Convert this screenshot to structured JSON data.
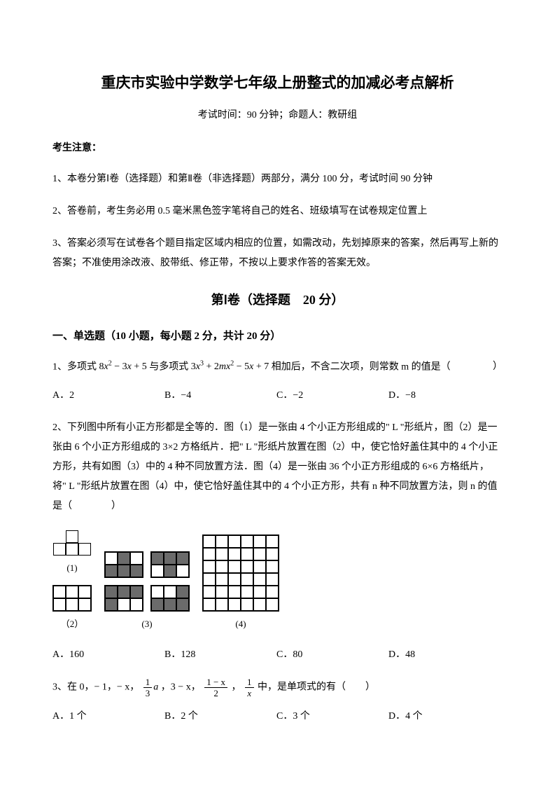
{
  "title": "重庆市实验中学数学七年级上册整式的加减必考点解析",
  "subtitle": "考试时间：90 分钟；命题人：教研组",
  "noticeHeader": "考生注意：",
  "notices": [
    "1、本卷分第Ⅰ卷（选择题）和第Ⅱ卷（非选择题）两部分，满分 100 分，考试时间 90 分钟",
    "2、答卷前，考生务必用 0.5 毫米黑色签字笔将自己的姓名、班级填写在试卷规定位置上",
    "3、答案必须写在试卷各个题目指定区域内相应的位置，如需改动，先划掉原来的答案，然后再写上新的答案；不准使用涂改液、胶带纸、修正带，不按以上要求作答的答案无效。"
  ],
  "sectionTitle": "第Ⅰ卷（选择题　20 分）",
  "subsection": "一、单选题（10 小题，每小题 2 分，共计 20 分）",
  "q1": {
    "prefix": "1、多项式",
    "poly1_a": "8",
    "poly1_b": "− 3",
    "poly1_c": "+ 5",
    "mid": "与多项式",
    "poly2_a": "3",
    "poly2_b": "+ 2",
    "poly2_c": "− 5",
    "poly2_d": "+ 7",
    "suffix": "相加后，不含二次项，则常数 m 的值是（",
    "end": "）",
    "options": {
      "A": "A．2",
      "B": "B．−4",
      "C": "C．−2",
      "D": "D．−8"
    }
  },
  "q2": {
    "text": "2、下列图中所有小正方形都是全等的．图（1）是一张由 4 个小正方形组成的\" L \"形纸片，图（2）是一张由 6 个小正方形组成的 3×2 方格纸片．把\" L \"形纸片放置在图（2）中，使它恰好盖住其中的 4 个小正方形，共有如图（3）中的 4 种不同放置方法．图（4）是一张由 36 个小正方形组成的 6×6 方格纸片，将\" L \"形纸片放置在图（4）中，使它恰好盖住其中的 4 个小正方形，共有 n 种不同放置方法，则 n 的值是（　　　　）",
    "labels": {
      "f1": "(1)",
      "f2": "（2）",
      "f3": "(3)",
      "f4": "(4)"
    },
    "options": {
      "A": "A．160",
      "B": "B．128",
      "C": "C．80",
      "D": "D．48"
    }
  },
  "q3": {
    "prefix": "3、在 0，− 1，− x，",
    "frac1_num": "1",
    "frac1_den": "3",
    "frac1_suf": "a",
    "mid1": "，3 − x，",
    "frac2_num": "1 − x",
    "frac2_den": "2",
    "mid2": "，",
    "frac3_num": "1",
    "frac3_den": "x",
    "suffix": "中，是单项式的有（　　）",
    "options": {
      "A": "A．1 个",
      "B": "B．2 个",
      "C": "C．3 个",
      "D": "D．4 个"
    }
  },
  "colors": {
    "text": "#000000",
    "background": "#ffffff",
    "cellDark": "#6b6b6b",
    "border": "#000000"
  }
}
